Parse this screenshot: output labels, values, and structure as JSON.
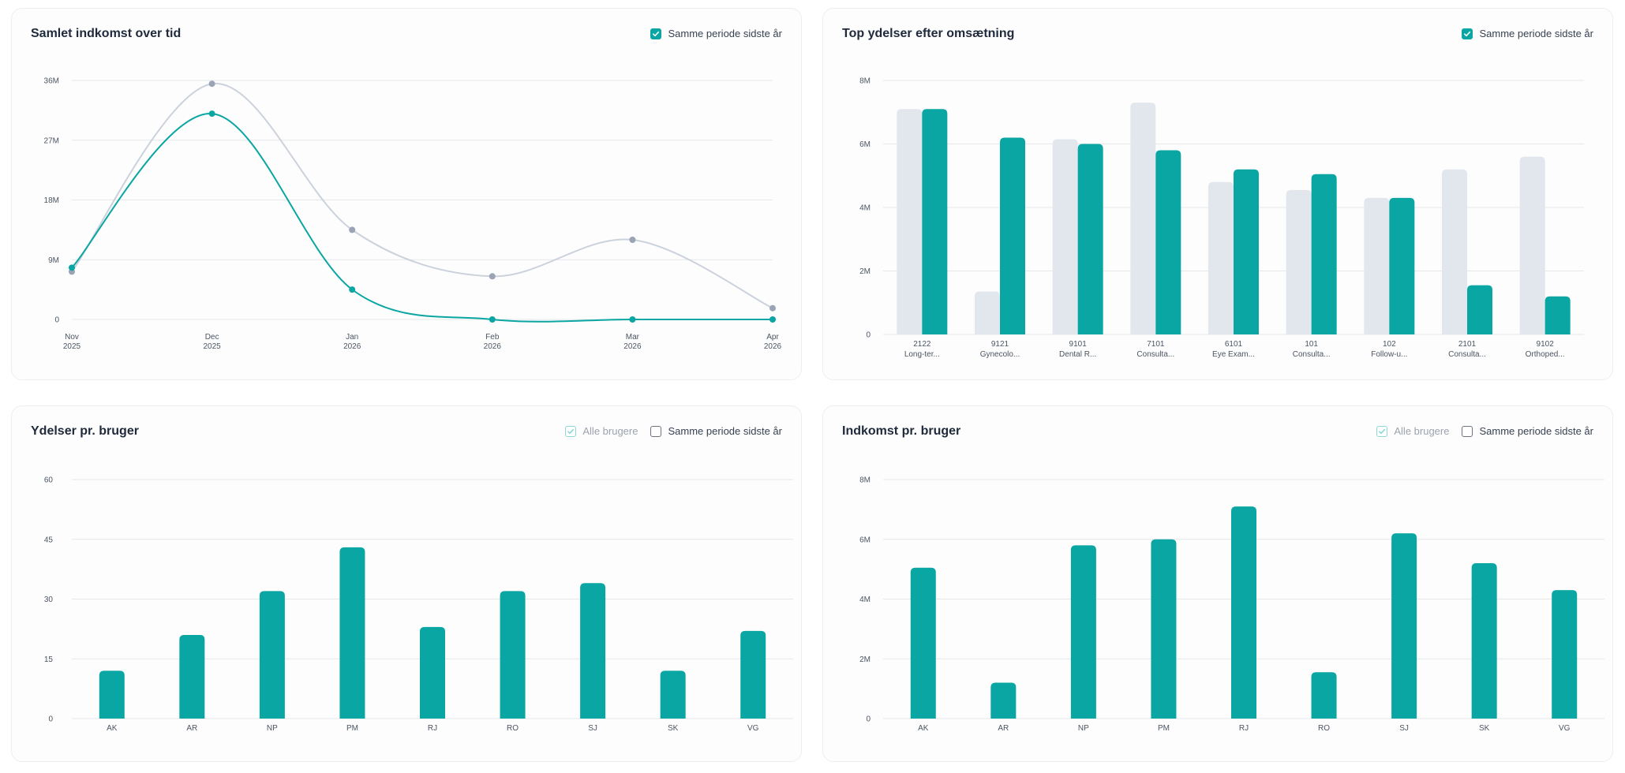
{
  "colors": {
    "current": "#0aa6a3",
    "previous": "#cbd2dc",
    "previous_bar": "#e2e7ee",
    "previous_point": "#9aa4b4"
  },
  "icons": {
    "check": "check-icon"
  },
  "cards": {
    "income_over_time": {
      "title": "Samlet indkomst over tid",
      "same_period_label": "Samme periode sidste år",
      "same_period_checked": true
    },
    "top_services": {
      "title": "Top ydelser efter omsætning",
      "same_period_label": "Samme periode sidste år",
      "same_period_checked": true
    },
    "services_per_user": {
      "title": "Ydelser pr. bruger",
      "all_users_label": "Alle brugere",
      "all_users_checked": true,
      "same_period_label": "Samme periode sidste år",
      "same_period_checked": false
    },
    "income_per_user": {
      "title": "Indkomst pr. bruger",
      "all_users_label": "Alle brugere",
      "all_users_checked": true,
      "same_period_label": "Samme periode sidste år",
      "same_period_checked": false
    }
  },
  "chart_data": [
    {
      "id": "income_over_time",
      "type": "line",
      "title": "Samlet indkomst over tid",
      "x": [
        [
          "Nov",
          "2025"
        ],
        [
          "Dec",
          "2025"
        ],
        [
          "Jan",
          "2026"
        ],
        [
          "Feb",
          "2026"
        ],
        [
          "Mar",
          "2026"
        ],
        [
          "Apr",
          "2026"
        ]
      ],
      "series": [
        {
          "values": [
            7.8,
            31,
            4.5,
            0,
            0,
            0
          ]
        },
        {
          "values": [
            7.2,
            35.5,
            13.5,
            6.5,
            12,
            1.7
          ]
        }
      ],
      "ylim": [
        0,
        36
      ],
      "yticks": [
        0,
        9,
        18,
        27,
        36
      ],
      "ytick_labels": [
        "0",
        "9M",
        "18M",
        "27M",
        "36M"
      ],
      "grid": true
    },
    {
      "id": "top_services",
      "type": "bar",
      "title": "Top ydelser efter omsætning",
      "categories": [
        [
          "2122",
          "Long-ter..."
        ],
        [
          "9121",
          "Gynecolo..."
        ],
        [
          "9101",
          "Dental R..."
        ],
        [
          "7101",
          "Consulta..."
        ],
        [
          "6101",
          "Eye Exam..."
        ],
        [
          "101",
          "Consulta..."
        ],
        [
          "102",
          "Follow-u..."
        ],
        [
          "2101",
          "Consulta..."
        ],
        [
          "9102",
          "Orthoped..."
        ]
      ],
      "series": [
        {
          "values": [
            7.1,
            1.35,
            6.15,
            7.3,
            4.8,
            4.55,
            4.3,
            5.2,
            5.6
          ]
        },
        {
          "values": [
            7.1,
            6.2,
            6.0,
            5.8,
            5.2,
            5.05,
            4.3,
            1.55,
            1.2
          ]
        }
      ],
      "ylim": [
        0,
        8
      ],
      "yticks": [
        0,
        2,
        4,
        6,
        8
      ],
      "ytick_labels": [
        "0",
        "2M",
        "4M",
        "6M",
        "8M"
      ],
      "grid": true
    },
    {
      "id": "services_per_user",
      "type": "bar",
      "title": "Ydelser pr. bruger",
      "categories": [
        "AK",
        "AR",
        "NP",
        "PM",
        "RJ",
        "RO",
        "SJ",
        "SK",
        "VG"
      ],
      "values": [
        12,
        21,
        32,
        43,
        23,
        32,
        34,
        12,
        22
      ],
      "ylim": [
        0,
        60
      ],
      "yticks": [
        0,
        15,
        30,
        45,
        60
      ],
      "ytick_labels": [
        "0",
        "15",
        "30",
        "45",
        "60"
      ],
      "grid": true
    },
    {
      "id": "income_per_user",
      "type": "bar",
      "title": "Indkomst pr. bruger",
      "categories": [
        "AK",
        "AR",
        "NP",
        "PM",
        "RJ",
        "RO",
        "SJ",
        "SK",
        "VG"
      ],
      "values": [
        5.05,
        1.2,
        5.8,
        6.0,
        7.1,
        1.55,
        6.2,
        5.2,
        4.3
      ],
      "ylim": [
        0,
        8
      ],
      "yticks": [
        0,
        2,
        4,
        6,
        8
      ],
      "ytick_labels": [
        "0",
        "2M",
        "4M",
        "6M",
        "8M"
      ],
      "grid": true
    }
  ]
}
